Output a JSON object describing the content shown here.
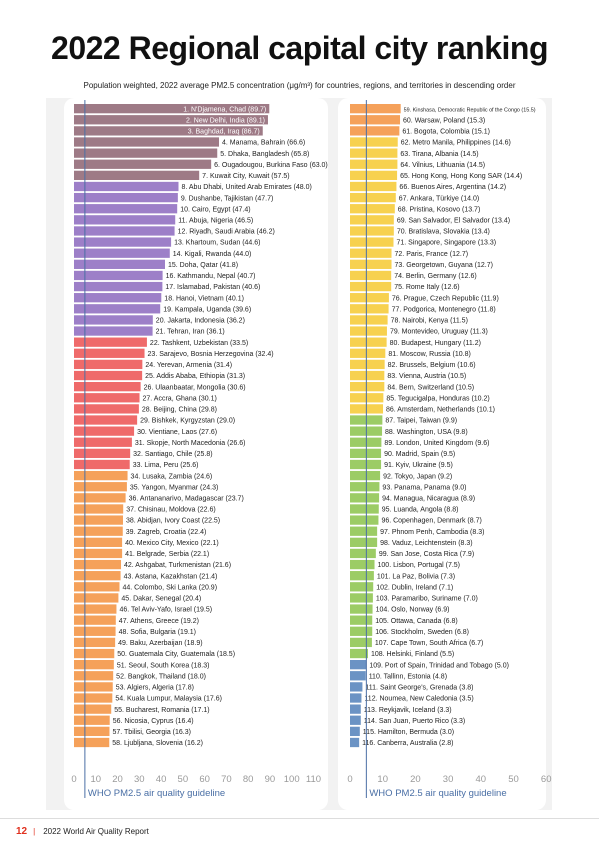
{
  "title": "2022 Regional capital city ranking",
  "subtitle": "Population weighted, 2022 average PM2.5 concentration (μg/m³) for countries, regions, and territories in descending order",
  "guideline_label": "WHO PM2.5 air quality guideline",
  "footer": {
    "page": "12",
    "separator": "|",
    "text": "2022 World Air Quality Report"
  },
  "colors": {
    "gt50": "#9e7a86",
    "35to50": "#9d7fc8",
    "25to35": "#ef6a6a",
    "15to25": "#f5a15a",
    "10to15": "#f7d14f",
    "5to10": "#9ccc65",
    "lt5": "#6b93c4",
    "guideline": "#4a6fa5",
    "axis_text": "#9a9a9a"
  },
  "chart_data": {
    "type": "bar",
    "orientation": "horizontal",
    "guideline_value": 5,
    "xlim": [
      0,
      110
    ],
    "left_axis_ticks": [
      0,
      10,
      20,
      30,
      40,
      50,
      60,
      70,
      80,
      90,
      100,
      110
    ],
    "right_axis_ticks": [
      0,
      10,
      20,
      30,
      40,
      50,
      60
    ],
    "right_xlim": [
      0,
      60
    ],
    "left": [
      {
        "label": "1. N'Djamena, Chad (89.7)",
        "value": 89.7
      },
      {
        "label": "2. New Delhi, India (89.1)",
        "value": 89.1
      },
      {
        "label": "3. Baghdad, Iraq (86.7)",
        "value": 86.7
      },
      {
        "label": "4. Manama, Bahrain (66.6)",
        "value": 66.6
      },
      {
        "label": "5. Dhaka, Bangladesh (65.8)",
        "value": 65.8
      },
      {
        "label": "6. Ougadougou, Burkina Faso (63.0)",
        "value": 63.0
      },
      {
        "label": "7. Kuwait City, Kuwait (57.5)",
        "value": 57.5
      },
      {
        "label": "8. Abu Dhabi, United Arab Emirates (48.0)",
        "value": 48.0
      },
      {
        "label": "9. Dushanbe, Tajikistan (47.7)",
        "value": 47.7
      },
      {
        "label": "10. Cairo, Egypt (47.4)",
        "value": 47.4
      },
      {
        "label": "11. Abuja, Nigeria (46.5)",
        "value": 46.5
      },
      {
        "label": "12. Riyadh, Saudi Arabia (46.2)",
        "value": 46.2
      },
      {
        "label": "13. Khartoum, Sudan (44.6)",
        "value": 44.6
      },
      {
        "label": "14. Kigali, Rwanda (44.0)",
        "value": 44.0
      },
      {
        "label": "15. Doha, Qatar (41.8)",
        "value": 41.8
      },
      {
        "label": "16. Kathmandu, Nepal (40.7)",
        "value": 40.7
      },
      {
        "label": "17. Islamabad, Pakistan (40.6)",
        "value": 40.6
      },
      {
        "label": "18. Hanoi, Vietnam (40.1)",
        "value": 40.1
      },
      {
        "label": "19. Kampala, Uganda (39.6)",
        "value": 39.6
      },
      {
        "label": "20. Jakarta, Indonesia (36.2)",
        "value": 36.2
      },
      {
        "label": "21. Tehran, Iran (36.1)",
        "value": 36.1
      },
      {
        "label": "22. Tashkent, Uzbekistan (33.5)",
        "value": 33.5
      },
      {
        "label": "23. Sarajevo, Bosnia Herzegovina (32.4)",
        "value": 32.4
      },
      {
        "label": "24. Yerevan, Armenia (31.4)",
        "value": 31.4
      },
      {
        "label": "25. Addis Ababa, Ethiopia (31.3)",
        "value": 31.3
      },
      {
        "label": "26. Ulaanbaatar, Mongolia (30.6)",
        "value": 30.6
      },
      {
        "label": "27. Accra, Ghana (30.1)",
        "value": 30.1
      },
      {
        "label": "28. Beijing, China (29.8)",
        "value": 29.8
      },
      {
        "label": "29. Bishkek, Kyrgyzstan (29.0)",
        "value": 29.0
      },
      {
        "label": "30. Vientiane, Laos (27.6)",
        "value": 27.6
      },
      {
        "label": "31. Skopje, North Macedonia (26.6)",
        "value": 26.6
      },
      {
        "label": "32. Santiago, Chile (25.8)",
        "value": 25.8
      },
      {
        "label": "33. Lima, Peru (25.6)",
        "value": 25.6
      },
      {
        "label": "34. Lusaka, Zambia (24.6)",
        "value": 24.6
      },
      {
        "label": "35. Yangon, Myanmar (24.3)",
        "value": 24.3
      },
      {
        "label": "36. Antananarivo, Madagascar (23.7)",
        "value": 23.7
      },
      {
        "label": "37. Chisinau, Moldova (22.6)",
        "value": 22.6
      },
      {
        "label": "38. Abidjan, Ivory Coast (22.5)",
        "value": 22.5
      },
      {
        "label": "39. Zagreb, Croatia (22.4)",
        "value": 22.4
      },
      {
        "label": "40. Mexico City, Mexico (22.1)",
        "value": 22.1
      },
      {
        "label": "41. Belgrade, Serbia (22.1)",
        "value": 22.1
      },
      {
        "label": "42. Ashgabat, Turkmenistan (21.6)",
        "value": 21.6
      },
      {
        "label": "43. Astana, Kazakhstan (21.4)",
        "value": 21.4
      },
      {
        "label": "44. Colombo, Ski Lanka (20.9)",
        "value": 20.9
      },
      {
        "label": "45. Dakar, Senegal (20.4)",
        "value": 20.4
      },
      {
        "label": "46. Tel Aviv-Yafo, Israel (19.5)",
        "value": 19.5
      },
      {
        "label": "47. Athens, Greece (19.2)",
        "value": 19.2
      },
      {
        "label": "48. Sofia, Bulgaria (19.1)",
        "value": 19.1
      },
      {
        "label": "49. Baku, Azerbaijan (18.9)",
        "value": 18.9
      },
      {
        "label": "50. Guatemala City, Guatemala (18.5)",
        "value": 18.5
      },
      {
        "label": "51. Seoul, South Korea (18.3)",
        "value": 18.3
      },
      {
        "label": "52. Bangkok, Thailand (18.0)",
        "value": 18.0
      },
      {
        "label": "53. Algiers, Algeria (17.8)",
        "value": 17.8
      },
      {
        "label": "54. Kuala Lumpur, Malaysia (17.6)",
        "value": 17.6
      },
      {
        "label": "55. Bucharest, Romania (17.1)",
        "value": 17.1
      },
      {
        "label": "56. Nicosia, Cyprus (16.4)",
        "value": 16.4
      },
      {
        "label": "57. Tbilisi, Georgia (16.3)",
        "value": 16.3
      },
      {
        "label": "58. Ljubljana, Slovenia (16.2)",
        "value": 16.2
      }
    ],
    "right": [
      {
        "label": "59. Kinshasa, Democratic Republic of the Congo (15.5)",
        "value": 15.5
      },
      {
        "label": "60. Warsaw, Poland (15.3)",
        "value": 15.3
      },
      {
        "label": "61. Bogota, Colombia (15.1)",
        "value": 15.1
      },
      {
        "label": "62. Metro Manila, Philippines (14.6)",
        "value": 14.6
      },
      {
        "label": "63. Tirana, Albania (14.5)",
        "value": 14.5
      },
      {
        "label": "64. Vilnius, Lithuania (14.5)",
        "value": 14.5
      },
      {
        "label": "65. Hong Kong, Hong Kong SAR (14.4)",
        "value": 14.4
      },
      {
        "label": "66. Buenos Aires, Argentina (14.2)",
        "value": 14.2
      },
      {
        "label": "67. Ankara, Türkiye (14.0)",
        "value": 14.0
      },
      {
        "label": "68. Pristina, Kosovo (13.7)",
        "value": 13.7
      },
      {
        "label": "69. San Salvador, El Salvador (13.4)",
        "value": 13.4
      },
      {
        "label": "70. Bratislava, Slovakia (13.4)",
        "value": 13.4
      },
      {
        "label": "71. Singapore, Singapore (13.3)",
        "value": 13.3
      },
      {
        "label": "72. Paris, France (12.7)",
        "value": 12.7
      },
      {
        "label": "73. Georgetown, Guyana (12.7)",
        "value": 12.7
      },
      {
        "label": "74. Berlin, Germany (12.6)",
        "value": 12.6
      },
      {
        "label": "75. Rome Italy (12.6)",
        "value": 12.6
      },
      {
        "label": "76. Prague, Czech Republic (11.9)",
        "value": 11.9
      },
      {
        "label": "77. Podgorica, Montenegro (11.8)",
        "value": 11.8
      },
      {
        "label": "78. Nairobi, Kenya (11.5)",
        "value": 11.5
      },
      {
        "label": "79. Montevideo, Uruguay (11.3)",
        "value": 11.3
      },
      {
        "label": "80. Budapest, Hungary (11.2)",
        "value": 11.2
      },
      {
        "label": "81. Moscow, Russia (10.8)",
        "value": 10.8
      },
      {
        "label": "82. Brussels, Belgium (10.6)",
        "value": 10.6
      },
      {
        "label": "83. Vienna, Austria (10.5)",
        "value": 10.5
      },
      {
        "label": "84. Bern, Switzerland (10.5)",
        "value": 10.5
      },
      {
        "label": "85. Tegucigalpa, Honduras (10.2)",
        "value": 10.2
      },
      {
        "label": "86. Amsterdam, Netherlands (10.1)",
        "value": 10.1
      },
      {
        "label": "87. Taipei, Taiwan (9.9)",
        "value": 9.9
      },
      {
        "label": "88. Washington, USA (9.8)",
        "value": 9.8
      },
      {
        "label": "89. London, United Kingdom (9.6)",
        "value": 9.6
      },
      {
        "label": "90. Madrid, Spain (9.5)",
        "value": 9.5
      },
      {
        "label": "91. Kyiv, Ukraine (9.5)",
        "value": 9.5
      },
      {
        "label": "92. Tokyo, Japan (9.2)",
        "value": 9.2
      },
      {
        "label": "93. Panama, Panama (9.0)",
        "value": 9.0
      },
      {
        "label": "94. Managua, Nicaragua (8.9)",
        "value": 8.9
      },
      {
        "label": "95. Luanda, Angola (8.8)",
        "value": 8.8
      },
      {
        "label": "96. Copenhagen, Denmark (8.7)",
        "value": 8.7
      },
      {
        "label": "97. Phnom Penh, Cambodia (8.3)",
        "value": 8.3
      },
      {
        "label": "98. Vaduz, Leichtenstein (8.3)",
        "value": 8.3
      },
      {
        "label": "99. San Jose, Costa Rica (7.9)",
        "value": 7.9
      },
      {
        "label": "100. Lisbon, Portugal (7.5)",
        "value": 7.5
      },
      {
        "label": "101. La Paz, Bolivia (7.3)",
        "value": 7.3
      },
      {
        "label": "102. Dublin, Ireland (7.1)",
        "value": 7.1
      },
      {
        "label": "103. Paramaribo, Suriname (7.0)",
        "value": 7.0
      },
      {
        "label": "104. Oslo, Norway (6.9)",
        "value": 6.9
      },
      {
        "label": "105. Ottawa, Canada (6.8)",
        "value": 6.8
      },
      {
        "label": "106. Stockholm, Sweden (6.8)",
        "value": 6.8
      },
      {
        "label": "107. Cape Town, South Africa (6.7)",
        "value": 6.7
      },
      {
        "label": "108. Helsinki, Finland (5.5)",
        "value": 5.5
      },
      {
        "label": "109. Port of Spain, Trinidad and Tobago (5.0)",
        "value": 5.0
      },
      {
        "label": "110. Tallinn, Estonia (4.8)",
        "value": 4.8
      },
      {
        "label": "111. Saint George's, Grenada (3.8)",
        "value": 3.8
      },
      {
        "label": "112. Noumea, New Caledonia (3.5)",
        "value": 3.5
      },
      {
        "label": "113. Reykjavik, Iceland (3.3)",
        "value": 3.3
      },
      {
        "label": "114. San Juan, Puerto Rico (3.3)",
        "value": 3.3
      },
      {
        "label": "115. Hamilton, Bermuda (3.0)",
        "value": 3.0
      },
      {
        "label": "116. Canberra, Australia (2.8)",
        "value": 2.8
      }
    ]
  }
}
